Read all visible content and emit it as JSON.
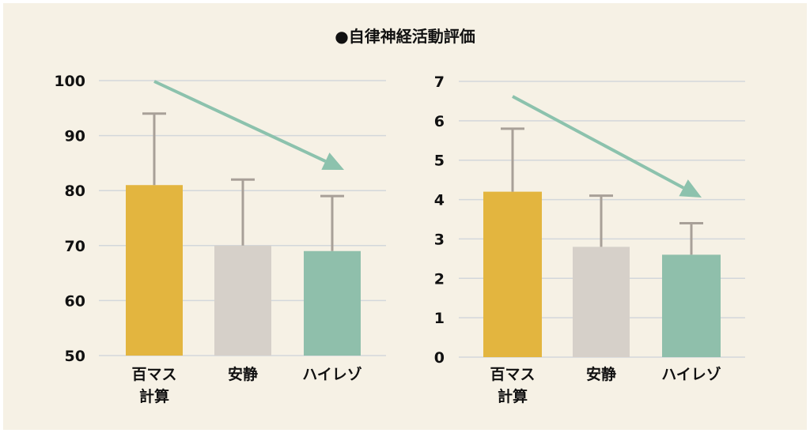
{
  "title": "●自律神経活動評価",
  "colors": {
    "background": "#f6f1e5",
    "grid": "#d3d7db",
    "error_bar": "#a8a098",
    "trend_arrow": "#8cc2ad",
    "bars": [
      "#e3b53f",
      "#d6d0c9",
      "#8fbfab"
    ]
  },
  "chart_data": [
    {
      "type": "bar",
      "title": "",
      "xlabel": "",
      "ylabel": "",
      "ylim": [
        50,
        100
      ],
      "yticks": [
        "50",
        "60",
        "70",
        "80",
        "90",
        "100"
      ],
      "grid": true,
      "categories": [
        [
          "百マス",
          "計算"
        ],
        [
          "安静"
        ],
        [
          "ハイレゾ"
        ]
      ],
      "values": [
        81,
        70,
        69
      ],
      "error_upper": [
        94,
        82,
        79
      ],
      "annotation": "decreasing-trend-arrow"
    },
    {
      "type": "bar",
      "title": "",
      "xlabel": "",
      "ylabel": "",
      "ylim": [
        0,
        7
      ],
      "yticks": [
        "0",
        "1",
        "2",
        "3",
        "4",
        "5",
        "6",
        "7"
      ],
      "grid": true,
      "categories": [
        [
          "百マス",
          "計算"
        ],
        [
          "安静"
        ],
        [
          "ハイレゾ"
        ]
      ],
      "values": [
        4.2,
        2.8,
        2.6
      ],
      "error_upper": [
        5.8,
        4.1,
        3.4
      ],
      "annotation": "decreasing-trend-arrow"
    }
  ]
}
